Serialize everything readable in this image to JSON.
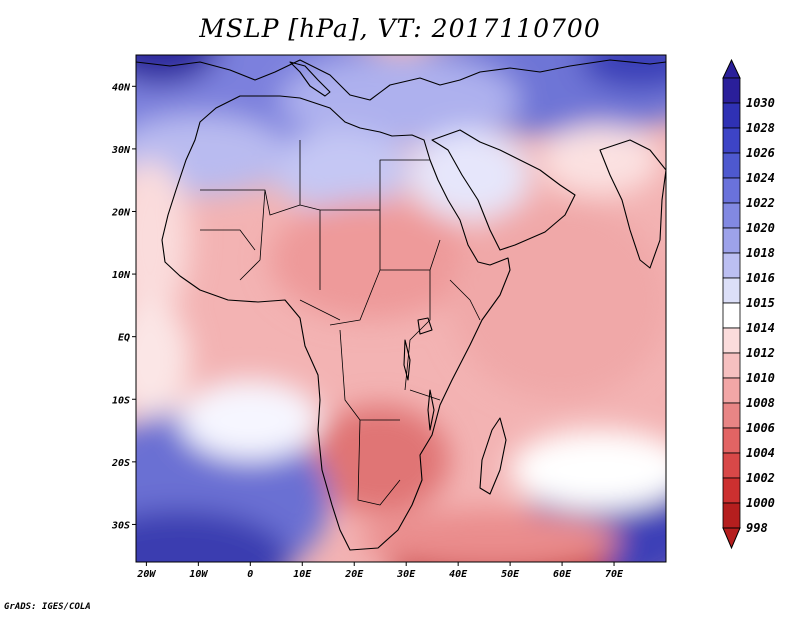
{
  "title": "MSLP [hPa], VT: 2017110700",
  "footer": "GrADS: IGES/COLA",
  "map": {
    "lat_ticks": [
      "40N",
      "30N",
      "20N",
      "10N",
      "EQ",
      "10S",
      "20S",
      "30S"
    ],
    "lon_ticks": [
      "20W",
      "10W",
      "0",
      "10E",
      "20E",
      "30E",
      "40E",
      "50E",
      "60E",
      "70E"
    ],
    "lon_range": [
      -22,
      80
    ],
    "lat_range": [
      -36,
      45
    ]
  },
  "colorbar": {
    "levels": [
      "1030",
      "1028",
      "1026",
      "1024",
      "1022",
      "1020",
      "1018",
      "1016",
      "1015",
      "1014",
      "1012",
      "1010",
      "1008",
      "1006",
      "1004",
      "1002",
      "1000",
      "998"
    ],
    "colors": [
      "#2a1f9a",
      "#2f31b4",
      "#3d44c6",
      "#4e59cf",
      "#6a72db",
      "#8289e2",
      "#9da2ea",
      "#bcbff2",
      "#dcdff8",
      "#ffffff",
      "#fbdcdc",
      "#f6c0c0",
      "#f2a6a6",
      "#e88585",
      "#e26464",
      "#d84848",
      "#cc3030",
      "#b51e1e"
    ]
  }
}
